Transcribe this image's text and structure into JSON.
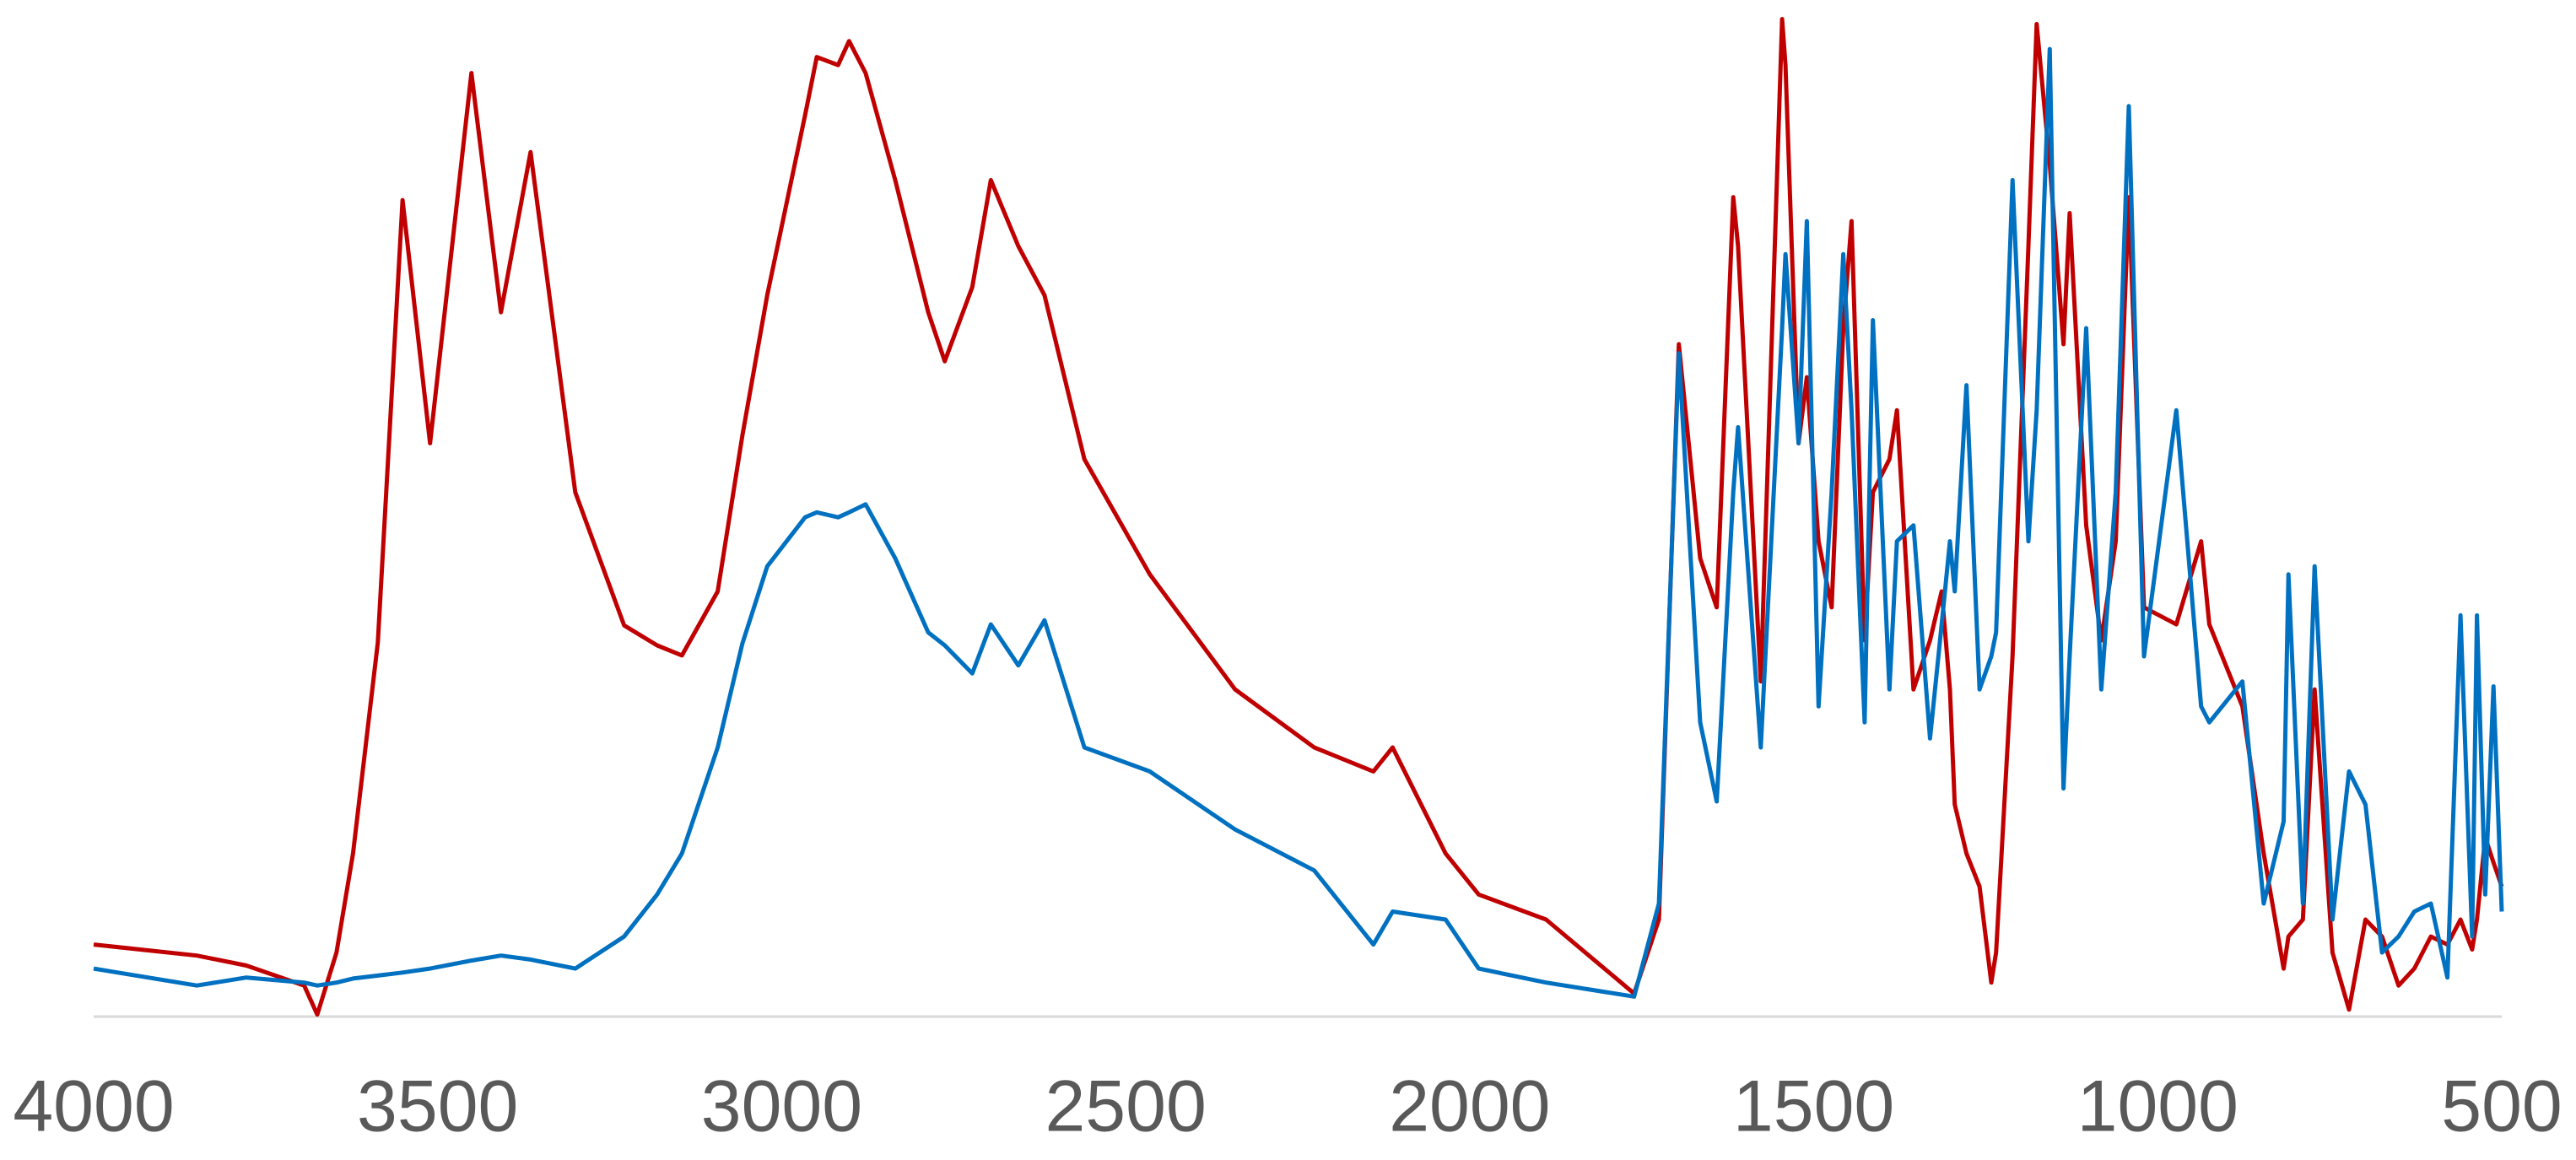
{
  "chart_data": {
    "type": "line",
    "x": [
      4000,
      3850,
      3778,
      3694,
      3675,
      3647,
      3623,
      3587,
      3551,
      3511,
      3451,
      3408,
      3365,
      3300,
      3229,
      3181,
      3145,
      3093,
      3057,
      3021,
      2966,
      2949,
      2918,
      2902,
      2878,
      2835,
      2787,
      2763,
      2723,
      2696,
      2656,
      2618,
      2560,
      2465,
      2341,
      2226,
      2140,
      2112,
      2035,
      1987,
      1889,
      1761,
      1725,
      1696,
      1665,
      1641,
      1617,
      1610,
      1577,
      1546,
      1541,
      1522,
      1510,
      1493,
      1474,
      1457,
      1445,
      1426,
      1414,
      1390,
      1379,
      1355,
      1331,
      1314,
      1302,
      1295,
      1278,
      1259,
      1242,
      1235,
      1211,
      1188,
      1176,
      1157,
      1137,
      1128,
      1104,
      1082,
      1061,
      1042,
      1020,
      973,
      937,
      925,
      877,
      846,
      817,
      810,
      789,
      772,
      746,
      722,
      698,
      674,
      650,
      627,
      603,
      579,
      560,
      543,
      536,
      524,
      512,
      500
    ],
    "series": [
      {
        "color": "#c00000",
        "values": [
          7.2,
          6.1,
          5.1,
          3.1,
          0.2,
          6.4,
          16.3,
          37.4,
          81.6,
          57.3,
          94.3,
          70.4,
          86.4,
          52.4,
          39.1,
          37.1,
          36.1,
          42.5,
          58.1,
          72.1,
          90.1,
          95.9,
          95.1,
          97.5,
          94.3,
          83.6,
          70.4,
          65.5,
          72.9,
          83.6,
          77.0,
          72.1,
          55.7,
          44.2,
          32.7,
          26.9,
          24.5,
          26.9,
          16.3,
          12.2,
          9.7,
          2.3,
          9.7,
          67.2,
          45.8,
          40.9,
          81.9,
          77.0,
          33.5,
          99.7,
          95.1,
          57.3,
          63.9,
          47.5,
          40.9,
          68.8,
          79.5,
          37.6,
          52.4,
          55.7,
          60.6,
          32.7,
          37.6,
          42.5,
          32.7,
          21.2,
          16.3,
          13.0,
          3.4,
          6.4,
          36.0,
          77.0,
          99.2,
          85.2,
          67.2,
          80.3,
          49.1,
          37.6,
          47.5,
          81.9,
          40.9,
          39.2,
          47.5,
          39.2,
          31.0,
          16.3,
          4.8,
          8.0,
          9.7,
          32.7,
          6.4,
          0.7,
          9.7,
          8.0,
          3.1,
          4.8,
          8.0,
          7.2,
          9.7,
          6.7,
          9.7,
          17.9,
          15.4,
          13.0
        ]
      },
      {
        "color": "#0070c0",
        "values": [
          4.8,
          3.1,
          3.9,
          3.4,
          3.1,
          3.4,
          3.8,
          4.1,
          4.4,
          4.8,
          5.6,
          6.1,
          5.7,
          4.8,
          8.0,
          12.2,
          16.3,
          26.9,
          37.3,
          45.0,
          49.9,
          50.4,
          49.9,
          50.4,
          51.2,
          45.8,
          38.4,
          37.1,
          34.3,
          39.2,
          35.1,
          39.6,
          26.9,
          24.5,
          18.7,
          14.6,
          7.2,
          10.5,
          9.7,
          4.8,
          3.4,
          2.0,
          11.3,
          66.3,
          29.4,
          21.5,
          52.4,
          58.9,
          26.9,
          68.8,
          76.2,
          57.3,
          79.5,
          31.0,
          52.4,
          76.2,
          60.6,
          29.4,
          69.6,
          32.7,
          47.5,
          49.1,
          27.8,
          39.2,
          47.5,
          42.5,
          63.1,
          32.7,
          36.0,
          38.4,
          83.6,
          47.5,
          60.6,
          96.7,
          22.8,
          36.0,
          68.8,
          32.7,
          52.4,
          91.0,
          36.0,
          60.6,
          31.0,
          29.4,
          33.5,
          11.3,
          19.5,
          44.2,
          11.3,
          45.0,
          9.7,
          24.5,
          21.2,
          6.4,
          8.0,
          10.5,
          11.3,
          3.9,
          40.1,
          8.0,
          40.1,
          12.2,
          33.0,
          10.5
        ]
      }
    ],
    "xlim": [
      4000,
      500
    ],
    "xticks": [
      4000,
      3500,
      3000,
      2500,
      2000,
      1500,
      1000,
      500
    ],
    "ylim": [
      0,
      100
    ]
  }
}
